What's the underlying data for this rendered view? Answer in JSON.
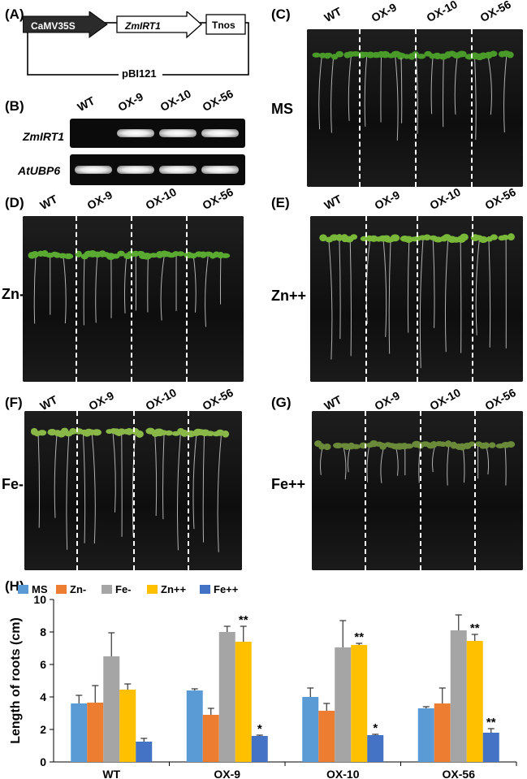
{
  "panels": {
    "A": "(A)",
    "B": "(B)",
    "C": "(C)",
    "D": "(D)",
    "E": "(E)",
    "F": "(F)",
    "G": "(G)",
    "H": "(H)"
  },
  "construct": {
    "promoter": "CaMV35S",
    "gene": "ZmIRT1",
    "terminator": "Tnos",
    "vector": "pBI121"
  },
  "gel": {
    "lanes": [
      "WT",
      "OX-9",
      "OX-10",
      "OX-56"
    ],
    "rows": [
      "ZmIRT1",
      "AtUBP6"
    ],
    "ZmIRT1_bands": [
      false,
      true,
      true,
      true
    ],
    "AtUBP6_bands": [
      true,
      true,
      true,
      true
    ]
  },
  "genotypes": [
    "WT",
    "OX-9",
    "OX-10",
    "OX-56"
  ],
  "plates": {
    "C": "MS",
    "D": "Zn-",
    "E": "Zn++",
    "F": "Fe-",
    "G": "Fe++"
  },
  "colors": {
    "MS": "#5b9bd5",
    "Zn-": "#ed7d31",
    "Fe-": "#a5a5a5",
    "Zn++": "#ffc000",
    "Fe++": "#4472c4"
  },
  "chart_data": {
    "type": "bar",
    "title": "",
    "xlabel": "",
    "ylabel": "Length of roots (cm)",
    "ylim": [
      0,
      10
    ],
    "yticks": [
      0,
      2,
      4,
      6,
      8,
      10
    ],
    "categories": [
      "WT",
      "OX-9",
      "OX-10",
      "OX-56"
    ],
    "legend_position": "top-left",
    "grid": false,
    "series": [
      {
        "name": "MS",
        "values": [
          3.6,
          4.4,
          4.0,
          3.3
        ],
        "errors": [
          0.5,
          0.1,
          0.55,
          0.1
        ],
        "sig": [
          "",
          "",
          "",
          ""
        ]
      },
      {
        "name": "Zn-",
        "values": [
          3.65,
          2.9,
          3.15,
          3.6
        ],
        "errors": [
          1.05,
          0.4,
          0.45,
          0.95
        ],
        "sig": [
          "",
          "",
          "",
          ""
        ]
      },
      {
        "name": "Fe-",
        "values": [
          6.5,
          8.0,
          7.05,
          8.1
        ],
        "errors": [
          1.45,
          0.35,
          1.65,
          0.95
        ],
        "sig": [
          "",
          "",
          "",
          ""
        ]
      },
      {
        "name": "Zn++",
        "values": [
          4.45,
          7.4,
          7.2,
          7.45
        ],
        "errors": [
          0.35,
          0.95,
          0.1,
          0.4
        ],
        "sig": [
          "",
          "**",
          "**",
          "**"
        ]
      },
      {
        "name": "Fe++",
        "values": [
          1.25,
          1.6,
          1.65,
          1.8
        ],
        "errors": [
          0.2,
          0.05,
          0.05,
          0.25
        ],
        "sig": [
          "",
          "*",
          "*",
          "**"
        ]
      }
    ]
  }
}
